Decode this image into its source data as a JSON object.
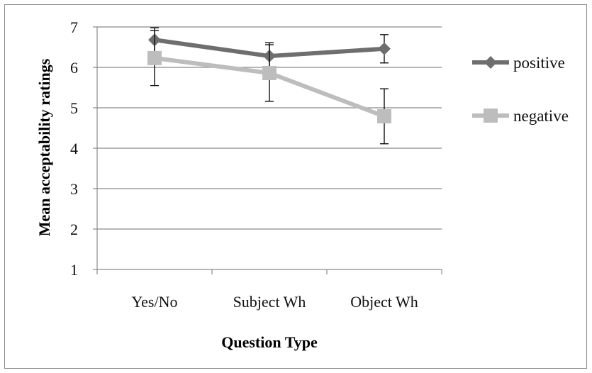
{
  "chart_data": {
    "type": "line",
    "title": "",
    "xlabel": "Question Type",
    "ylabel": "Mean acceptability ratings",
    "categories": [
      "Yes/No",
      "Subject Wh",
      "Object Wh"
    ],
    "ylim": [
      1,
      7
    ],
    "yticks": [
      "1",
      "2",
      "3",
      "4",
      "5",
      "6",
      "7"
    ],
    "grid": true,
    "legend_position": "right",
    "series": [
      {
        "name": "positive",
        "values": [
          6.68,
          6.28,
          6.46
        ],
        "error": [
          0.3,
          0.33,
          0.35
        ],
        "color": "#6e6e6e",
        "marker": "diamond"
      },
      {
        "name": "negative",
        "values": [
          6.23,
          5.86,
          4.79
        ],
        "error": [
          0.68,
          0.7,
          0.68
        ],
        "color": "#bdbdbd",
        "marker": "square"
      }
    ]
  }
}
